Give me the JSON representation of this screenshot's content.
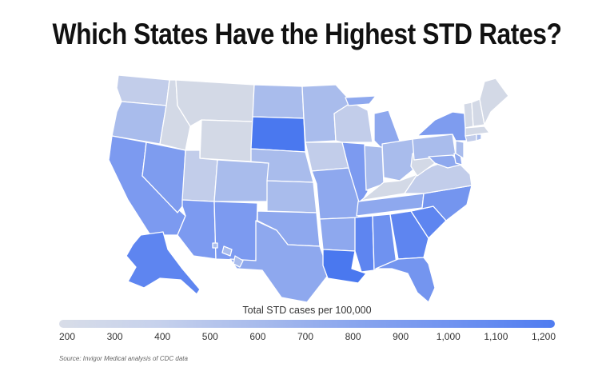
{
  "title": "Which States Have the Highest STD Rates?",
  "legend": {
    "title": "Total STD cases per 100,000",
    "ticks": [
      "200",
      "300",
      "400",
      "500",
      "600",
      "700",
      "800",
      "900",
      "1,000",
      "1,100",
      "1,200"
    ],
    "scale_min": 200,
    "scale_max": 1200,
    "color_low": "#d8dde8",
    "color_high": "#4f7cf0"
  },
  "source": "Source: Invigor Medical analysis of CDC data",
  "colors": {
    "very_light": "#d3d9e6",
    "light": "#c2cdea",
    "medium_light": "#a9bcec",
    "medium": "#8ea8ee",
    "medium_dark": "#7495ef",
    "dark": "#5e85f0",
    "darkest": "#4a78ef"
  }
}
